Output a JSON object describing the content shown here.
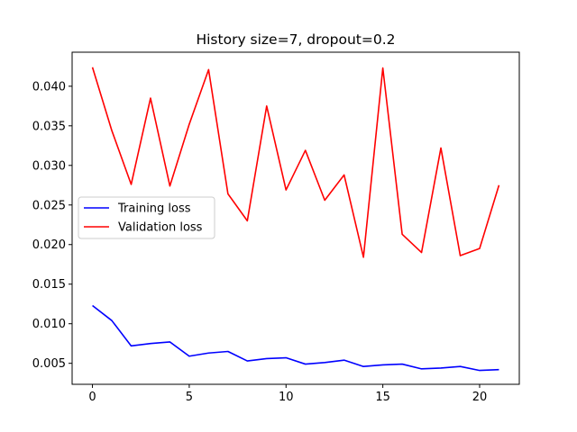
{
  "chart_data": {
    "type": "line",
    "title": "History size=7, dropout=0.2",
    "xlabel": "",
    "ylabel": "",
    "xlim": [
      -1.05,
      22.05
    ],
    "ylim": [
      0.00235,
      0.0443
    ],
    "x_ticks": [
      0,
      5,
      10,
      15,
      20
    ],
    "y_ticks": [
      0.005,
      0.01,
      0.015,
      0.02,
      0.025,
      0.03,
      0.035,
      0.04
    ],
    "y_tick_labels": [
      "0.005",
      "0.010",
      "0.015",
      "0.020",
      "0.025",
      "0.030",
      "0.035",
      "0.040"
    ],
    "grid": false,
    "legend_position": "center-left",
    "x": [
      0,
      1,
      2,
      3,
      4,
      5,
      6,
      7,
      8,
      9,
      10,
      11,
      12,
      13,
      14,
      15,
      16,
      17,
      18,
      19,
      20,
      21
    ],
    "series": [
      {
        "name": "Training loss",
        "color": "#0000ff",
        "values": [
          0.0123,
          0.0104,
          0.0072,
          0.0075,
          0.0077,
          0.0059,
          0.0063,
          0.0065,
          0.0053,
          0.0056,
          0.0057,
          0.0049,
          0.0051,
          0.0054,
          0.0046,
          0.0048,
          0.0049,
          0.0043,
          0.0044,
          0.0046,
          0.0041,
          0.0042
        ]
      },
      {
        "name": "Validation loss",
        "color": "#ff0000",
        "values": [
          0.0424,
          0.0344,
          0.0276,
          0.0385,
          0.0274,
          0.0352,
          0.0421,
          0.0264,
          0.023,
          0.0375,
          0.0269,
          0.0319,
          0.0256,
          0.0288,
          0.0184,
          0.0423,
          0.0213,
          0.019,
          0.0322,
          0.0186,
          0.0195,
          0.0275
        ]
      }
    ]
  }
}
